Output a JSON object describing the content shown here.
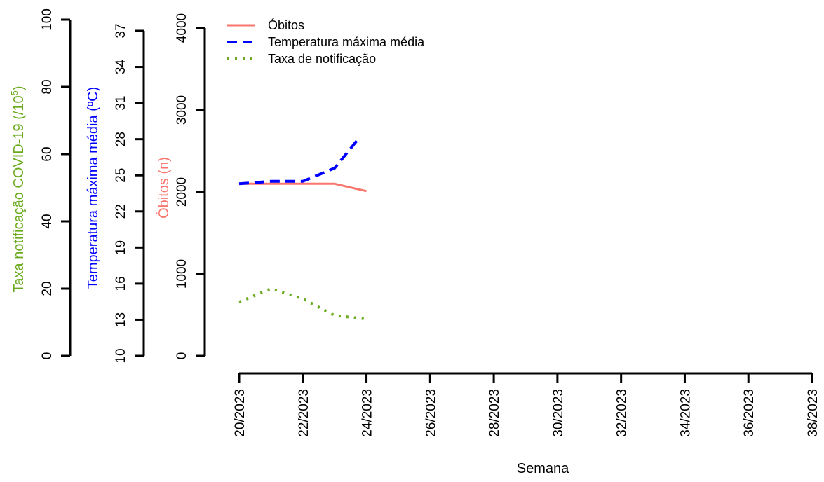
{
  "chart_data": {
    "type": "line",
    "xlabel": "Semana",
    "x_tick_labels": [
      "20/2023",
      "22/2023",
      "24/2023",
      "26/2023",
      "28/2023",
      "30/2023",
      "32/2023",
      "34/2023",
      "36/2023",
      "38/2023"
    ],
    "x_range": [
      20,
      38
    ],
    "axes": {
      "obitos": {
        "label": "Óbitos (n)",
        "ticks": [
          "0",
          "1000",
          "2000",
          "3000",
          "4000"
        ],
        "range": [
          0,
          4000
        ]
      },
      "temperatura": {
        "label": "Temperatura máxima média (ºC)",
        "ticks": [
          "10",
          "13",
          "16",
          "19",
          "22",
          "25",
          "28",
          "31",
          "34",
          "37"
        ],
        "range": [
          10,
          37
        ]
      },
      "taxa": {
        "label_main": "Taxa notificação COVID-19 (/10",
        "label_sup": "5",
        "label_close": ")",
        "ticks": [
          "0",
          "20",
          "40",
          "60",
          "80",
          "100"
        ],
        "range": [
          0,
          100
        ]
      }
    },
    "series": [
      {
        "name": "Óbitos",
        "axis": "obitos",
        "color": "#f8766d",
        "dash": "solid",
        "points": [
          [
            20,
            2100
          ],
          [
            21,
            2100
          ],
          [
            22,
            2100
          ],
          [
            23,
            2100
          ],
          [
            24,
            2010
          ]
        ]
      },
      {
        "name": "Temperatura máxima média",
        "axis": "temperatura",
        "color": "#0000ff",
        "dash": "dashed",
        "points": [
          [
            20,
            24.3
          ],
          [
            21,
            24.5
          ],
          [
            22,
            24.5
          ],
          [
            23,
            25.6
          ],
          [
            23.8,
            28.2
          ]
        ]
      },
      {
        "name": "Taxa de notificação",
        "axis": "taxa",
        "color": "#6aaa1d",
        "dash": "dotted",
        "points": [
          [
            20,
            16
          ],
          [
            21,
            20
          ],
          [
            22,
            17
          ],
          [
            23,
            12
          ],
          [
            24,
            11
          ]
        ]
      }
    ],
    "legend": {
      "position": "top-left"
    },
    "colors": {
      "obitos": "#f8766d",
      "temperatura": "#0000ff",
      "taxa": "#6aaa1d"
    }
  }
}
